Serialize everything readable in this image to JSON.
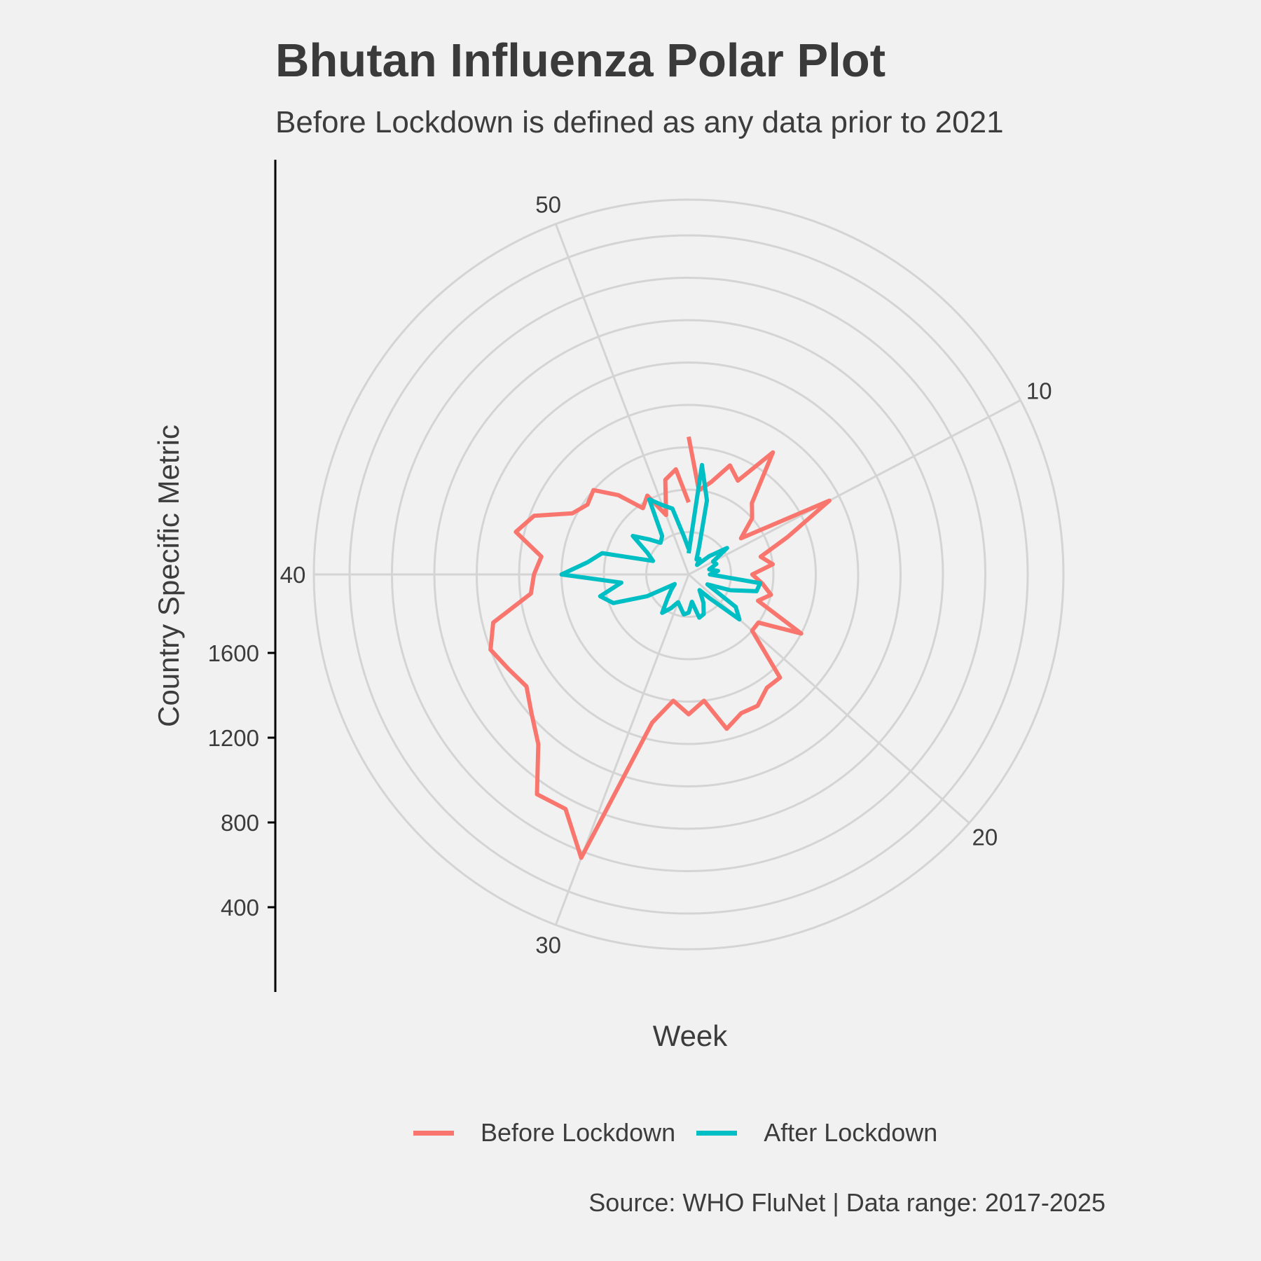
{
  "chart_data": {
    "type": "line",
    "coord": "polar",
    "title": "Bhutan Influenza Polar Plot",
    "subtitle": "Before Lockdown is defined as any data prior to 2021",
    "xlabel": "Week",
    "ylabel": "Country Specific Metric",
    "caption": "Source: WHO FluNet | Data range: 2017-2025",
    "x_ticks": [
      10,
      20,
      30,
      40,
      50
    ],
    "y_ticks": [
      400,
      800,
      1200,
      1600
    ],
    "xlim": [
      1,
      53
    ],
    "ylim": [
      0,
      2000
    ],
    "grid": true,
    "legend_position": "bottom",
    "series": [
      {
        "name": "Before Lockdown",
        "color": "#f8766d",
        "x": [
          1,
          2,
          3,
          4,
          5,
          6,
          7,
          8,
          9,
          10,
          11,
          12,
          13,
          14,
          15,
          16,
          17,
          18,
          19,
          20,
          21,
          22,
          23,
          24,
          25,
          26,
          27,
          28,
          29,
          30,
          31,
          32,
          33,
          34,
          35,
          36,
          37,
          38,
          39,
          40,
          41,
          42,
          43,
          44,
          45,
          46,
          47,
          48,
          49,
          50,
          51,
          52,
          53
        ],
        "y": [
          650,
          400,
          450,
          550,
          500,
          700,
          450,
          400,
          300,
          750,
          500,
          350,
          400,
          300,
          350,
          400,
          350,
          600,
          400,
          400,
          650,
          650,
          700,
          700,
          750,
          600,
          660,
          600,
          720,
          1430,
          1250,
          1260,
          1070,
          990,
          930,
          960,
          1000,
          950,
          750,
          730,
          700,
          840,
          780,
          620,
          580,
          600,
          500,
          380,
          420,
          300,
          460,
          500,
          340
        ]
      },
      {
        "name": "After Lockdown",
        "color": "#00bfc4",
        "x": [
          1,
          2,
          3,
          4,
          5,
          6,
          7,
          8,
          9,
          10,
          11,
          12,
          13,
          14,
          15,
          16,
          17,
          18,
          19,
          20,
          21,
          22,
          23,
          24,
          25,
          26,
          27,
          28,
          29,
          30,
          31,
          32,
          33,
          34,
          35,
          36,
          37,
          38,
          39,
          40,
          41,
          42,
          43,
          44,
          45,
          46,
          47,
          48,
          49,
          50,
          51,
          52,
          53
        ],
        "y": [
          100,
          520,
          360,
          140,
          80,
          90,
          60,
          130,
          220,
          130,
          140,
          100,
          140,
          100,
          340,
          330,
          210,
          100,
          270,
          320,
          150,
          90,
          150,
          200,
          210,
          130,
          180,
          190,
          160,
          140,
          180,
          220,
          150,
          110,
          80,
          220,
          380,
          430,
          320,
          600,
          480,
          420,
          180,
          220,
          320,
          250,
          200,
          220,
          400,
          350,
          320,
          180,
          120
        ]
      }
    ],
    "legend": [
      {
        "label": "Before Lockdown",
        "color": "#f8766d"
      },
      {
        "label": "After Lockdown",
        "color": "#00bfc4"
      }
    ]
  }
}
